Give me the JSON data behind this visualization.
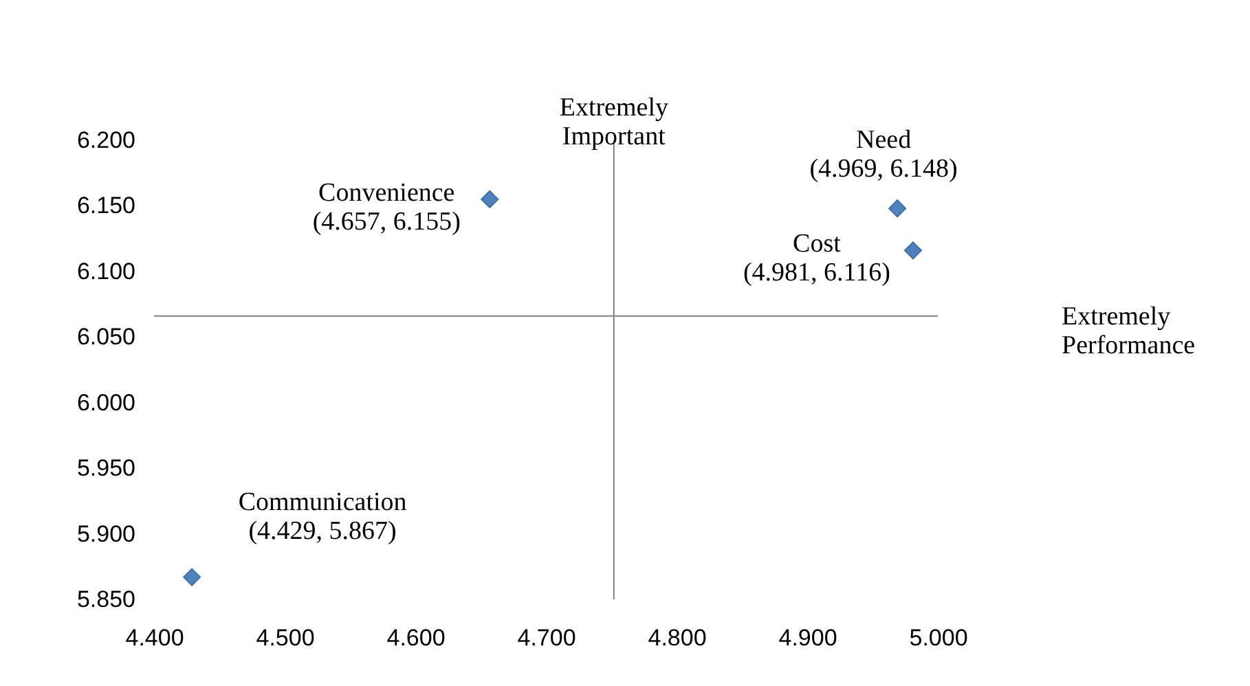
{
  "chart_data": {
    "type": "scatter",
    "x": [
      4.657,
      4.969,
      4.981,
      4.429
    ],
    "values": [
      6.155,
      6.148,
      6.116,
      5.867
    ],
    "value_labels": [
      "Convenience\n(4.657, 6.155)",
      "Need\n(4.969, 6.148)",
      "Cost\n(4.981, 6.116)",
      "Communication\n(4.429, 5.867)"
    ],
    "color": "#4f81bd",
    "marker": "diamond",
    "xlim": [
      4.4,
      5.0
    ],
    "xticks": [
      {
        "value": 4.4,
        "label": "4.400"
      },
      {
        "value": 4.5,
        "label": "4.500"
      },
      {
        "value": 4.6,
        "label": "4.600"
      },
      {
        "value": 4.7,
        "label": "4.700"
      },
      {
        "value": 4.8,
        "label": "4.800"
      },
      {
        "value": 4.9,
        "label": "4.900"
      },
      {
        "value": 5.0,
        "label": "5.000"
      }
    ],
    "ylim": [
      5.85,
      6.2
    ],
    "yticks": [
      {
        "value": 5.85,
        "label": "5.850"
      },
      {
        "value": 5.9,
        "label": "5.900"
      },
      {
        "value": 5.95,
        "label": "5.950"
      },
      {
        "value": 6.0,
        "label": "6.000"
      },
      {
        "value": 6.05,
        "label": "6.050"
      },
      {
        "value": 6.1,
        "label": "6.100"
      },
      {
        "value": 6.15,
        "label": "6.150"
      },
      {
        "value": 6.2,
        "label": "6.200"
      }
    ],
    "ref_lines": [
      {
        "axis": "x",
        "value": 4.752,
        "color": "#808080"
      },
      {
        "axis": "y",
        "value": 6.066,
        "color": "#808080"
      }
    ],
    "annotations": [
      "Extremely\nImportant",
      "Extremely\nPerformance"
    ],
    "grid": false
  }
}
